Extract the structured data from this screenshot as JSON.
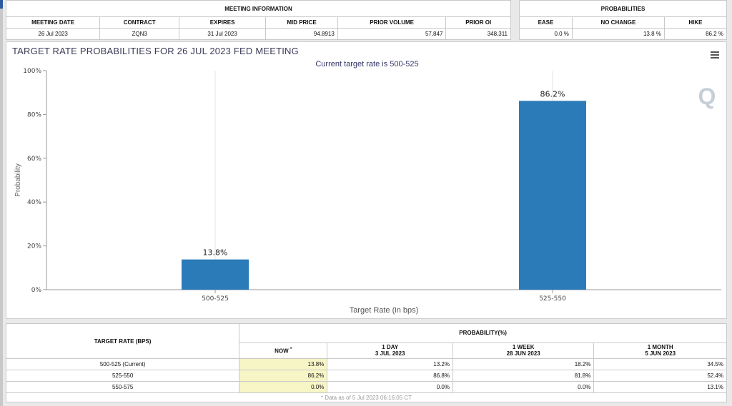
{
  "meeting_info": {
    "header": "MEETING INFORMATION",
    "columns": [
      "MEETING DATE",
      "CONTRACT",
      "EXPIRES",
      "MID PRICE",
      "PRIOR VOLUME",
      "PRIOR OI"
    ],
    "row": [
      "26 Jul 2023",
      "ZQN3",
      "31 Jul 2023",
      "94.8913",
      "57,847",
      "348,311"
    ]
  },
  "probabilities": {
    "header": "PROBABILITIES",
    "columns": [
      "EASE",
      "NO CHANGE",
      "HIKE"
    ],
    "row": [
      "0.0 %",
      "13.8 %",
      "86.2 %"
    ]
  },
  "chart_data": {
    "type": "bar",
    "title": "TARGET RATE PROBABILITIES FOR 26 JUL 2023 FED MEETING",
    "subtitle": "Current target rate is 500-525",
    "categories": [
      "500-525",
      "525-550"
    ],
    "values": [
      13.8,
      86.2
    ],
    "data_labels": [
      "13.8%",
      "86.2%"
    ],
    "xlabel": "Target Rate (in bps)",
    "ylabel": "Probability",
    "ylim": [
      0,
      100
    ],
    "yticks": [
      0,
      20,
      40,
      60,
      80,
      100
    ],
    "ytick_labels": [
      "0%",
      "20%",
      "40%",
      "60%",
      "80%",
      "100%"
    ],
    "bar_color": "#2b7bb9",
    "grid": "vertical category lines",
    "watermark": "Q"
  },
  "bottom_table": {
    "target_header": "TARGET RATE (BPS)",
    "prob_header": "PROBABILITY(%)",
    "now_label": "NOW",
    "now_mark": "*",
    "periods": [
      {
        "label": "1 DAY",
        "date": "3 JUL 2023"
      },
      {
        "label": "1 WEEK",
        "date": "28 JUN 2023"
      },
      {
        "label": "1 MONTH",
        "date": "5 JUN 2023"
      }
    ],
    "rows": [
      {
        "rate": "500-525 (Current)",
        "now": "13.8%",
        "d1": "13.2%",
        "w1": "18.2%",
        "m1": "34.5%"
      },
      {
        "rate": "525-550",
        "now": "86.2%",
        "d1": "86.8%",
        "w1": "81.8%",
        "m1": "52.4%"
      },
      {
        "rate": "550-575",
        "now": "0.0%",
        "d1": "0.0%",
        "w1": "0.0%",
        "m1": "13.1%"
      }
    ],
    "note": "* Data as of 5 Jul 2023 06:16:05 CT"
  }
}
